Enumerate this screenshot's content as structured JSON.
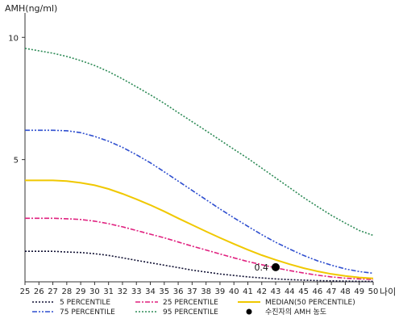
{
  "chart_data": {
    "type": "line",
    "ylabel": "AMH(ng/ml)",
    "xlabel": "나이",
    "xlim": [
      25,
      50
    ],
    "ylim": [
      0,
      11
    ],
    "xticks": [
      25,
      26,
      27,
      28,
      29,
      30,
      31,
      32,
      33,
      34,
      35,
      36,
      37,
      38,
      39,
      40,
      41,
      42,
      43,
      44,
      45,
      46,
      47,
      48,
      49,
      50
    ],
    "yticks": [
      5,
      10
    ],
    "grid": false,
    "legend_position": "bottom",
    "x": [
      25,
      26,
      27,
      28,
      29,
      30,
      31,
      32,
      33,
      34,
      35,
      36,
      37,
      38,
      39,
      40,
      41,
      42,
      43,
      44,
      45,
      46,
      47,
      48,
      49,
      50
    ],
    "series": [
      {
        "name": "5 PERCENTILE",
        "color": "#111133",
        "dash": "2,2",
        "values": [
          1.25,
          1.25,
          1.25,
          1.22,
          1.2,
          1.15,
          1.08,
          0.98,
          0.88,
          0.78,
          0.68,
          0.58,
          0.48,
          0.4,
          0.32,
          0.26,
          0.2,
          0.16,
          0.12,
          0.09,
          0.07,
          0.05,
          0.04,
          0.03,
          0.02,
          0.02
        ]
      },
      {
        "name": "25 PERCENTILE",
        "color": "#e0207f",
        "dash": "6,2,2,2",
        "values": [
          2.6,
          2.6,
          2.6,
          2.58,
          2.55,
          2.48,
          2.38,
          2.25,
          2.1,
          1.95,
          1.8,
          1.63,
          1.46,
          1.3,
          1.14,
          0.98,
          0.83,
          0.7,
          0.57,
          0.46,
          0.36,
          0.27,
          0.2,
          0.15,
          0.12,
          0.1
        ]
      },
      {
        "name": "MEDIAN(50 PERCENTILE)",
        "color": "#f0c800",
        "dash": "",
        "values": [
          4.15,
          4.15,
          4.15,
          4.12,
          4.05,
          3.95,
          3.8,
          3.6,
          3.38,
          3.14,
          2.88,
          2.6,
          2.33,
          2.06,
          1.8,
          1.55,
          1.31,
          1.09,
          0.9,
          0.72,
          0.56,
          0.43,
          0.32,
          0.24,
          0.18,
          0.14
        ]
      },
      {
        "name": "75 PERCENTILE",
        "color": "#2f4fcf",
        "dash": "6,2,2,2,2,2",
        "values": [
          6.2,
          6.2,
          6.2,
          6.18,
          6.1,
          5.95,
          5.75,
          5.5,
          5.2,
          4.87,
          4.5,
          4.12,
          3.74,
          3.36,
          2.98,
          2.62,
          2.27,
          1.93,
          1.62,
          1.34,
          1.08,
          0.86,
          0.68,
          0.53,
          0.42,
          0.35
        ]
      },
      {
        "name": "95 PERCENTILE",
        "color": "#2e8b57",
        "dash": "2,2",
        "values": [
          9.55,
          9.45,
          9.35,
          9.22,
          9.05,
          8.85,
          8.6,
          8.3,
          7.98,
          7.65,
          7.3,
          6.92,
          6.55,
          6.18,
          5.8,
          5.42,
          5.05,
          4.65,
          4.25,
          3.85,
          3.45,
          3.08,
          2.72,
          2.4,
          2.1,
          1.9
        ]
      }
    ],
    "marker": {
      "name": "수진자의 AMH 농도",
      "x": 43,
      "y": 0.4,
      "label": "0.4",
      "color": "#000000"
    }
  }
}
